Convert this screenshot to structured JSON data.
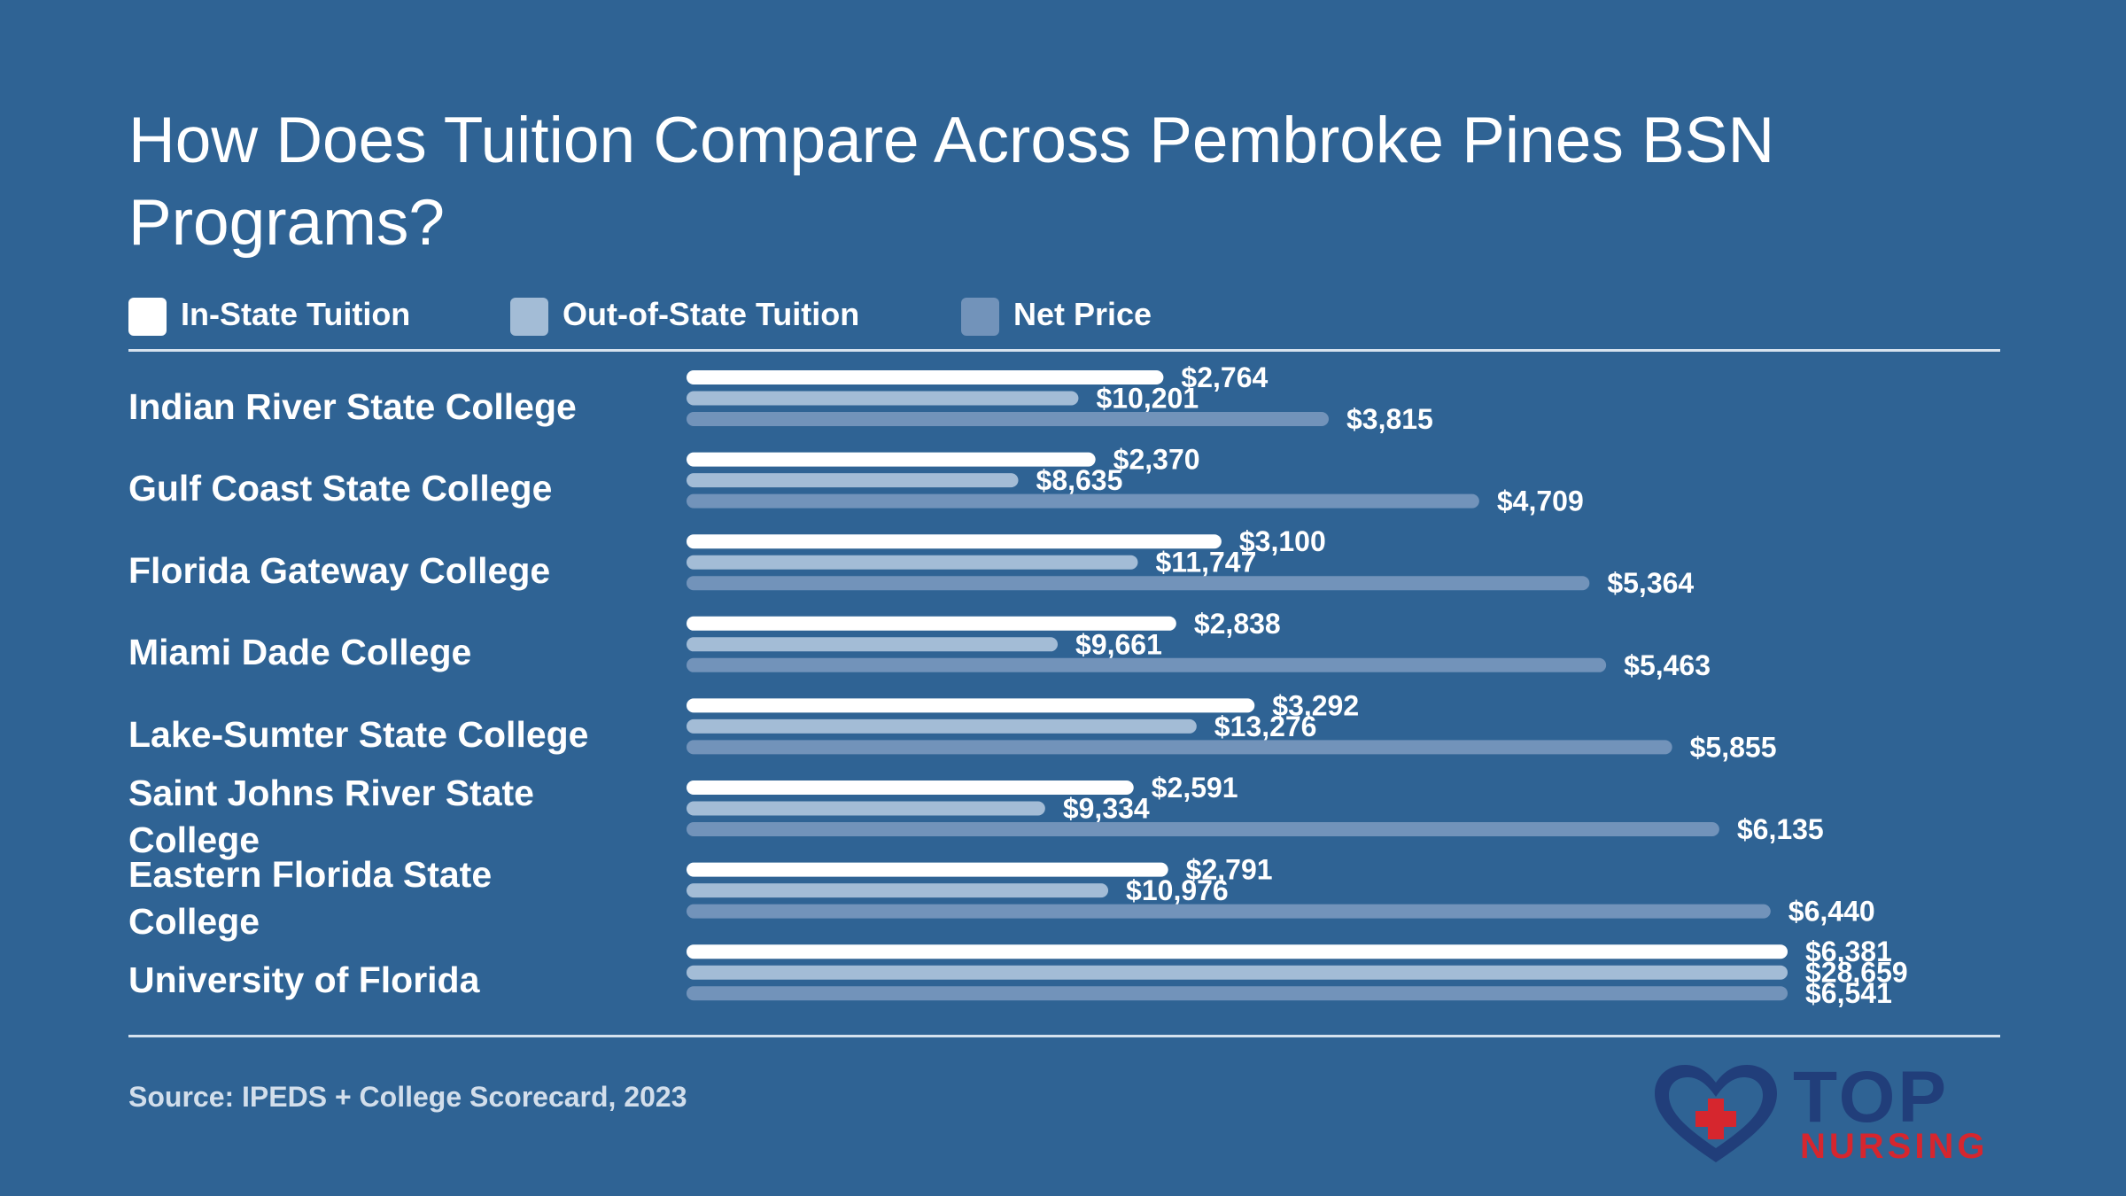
{
  "chart_data": {
    "type": "bar",
    "orientation": "horizontal",
    "title": "How Does Tuition Compare Across Pembroke Pines BSN Programs?",
    "categories": [
      "Indian River State College",
      "Gulf Coast State College",
      "Florida Gateway College",
      "Miami Dade College",
      "Lake-Sumter State College",
      "Saint Johns River State College",
      "Eastern Florida State College",
      "University of Florida"
    ],
    "series": [
      {
        "name": "In-State Tuition",
        "color": "#ffffff",
        "values": [
          2764,
          2370,
          3100,
          2838,
          3292,
          2591,
          2791,
          6381
        ],
        "labels": [
          "$2,764",
          "$2,370",
          "$3,100",
          "$2,838",
          "$3,292",
          "$2,591",
          "$2,791",
          "$6,381"
        ]
      },
      {
        "name": "Out-of-State Tuition",
        "color": "#a3bcd6",
        "values": [
          10201,
          8635,
          11747,
          9661,
          13276,
          9334,
          10976,
          28659
        ],
        "labels": [
          "$10,201",
          "$8,635",
          "$11,747",
          "$9,661",
          "$13,276",
          "$9,334",
          "$10,976",
          "$28,659"
        ]
      },
      {
        "name": "Net Price",
        "color": "#7293ba",
        "values": [
          3815,
          4709,
          5364,
          5463,
          5855,
          6135,
          6440,
          6541
        ],
        "labels": [
          "$3,815",
          "$4,709",
          "$5,364",
          "$5,463",
          "$5,855",
          "$6,135",
          "$6,440",
          "$6,541"
        ]
      }
    ],
    "legend_position": "top-left",
    "grid": false
  },
  "source": "Source: IPEDS + College Scorecard, 2023",
  "logo": {
    "top": "TOP",
    "nursing": "NURSING"
  }
}
